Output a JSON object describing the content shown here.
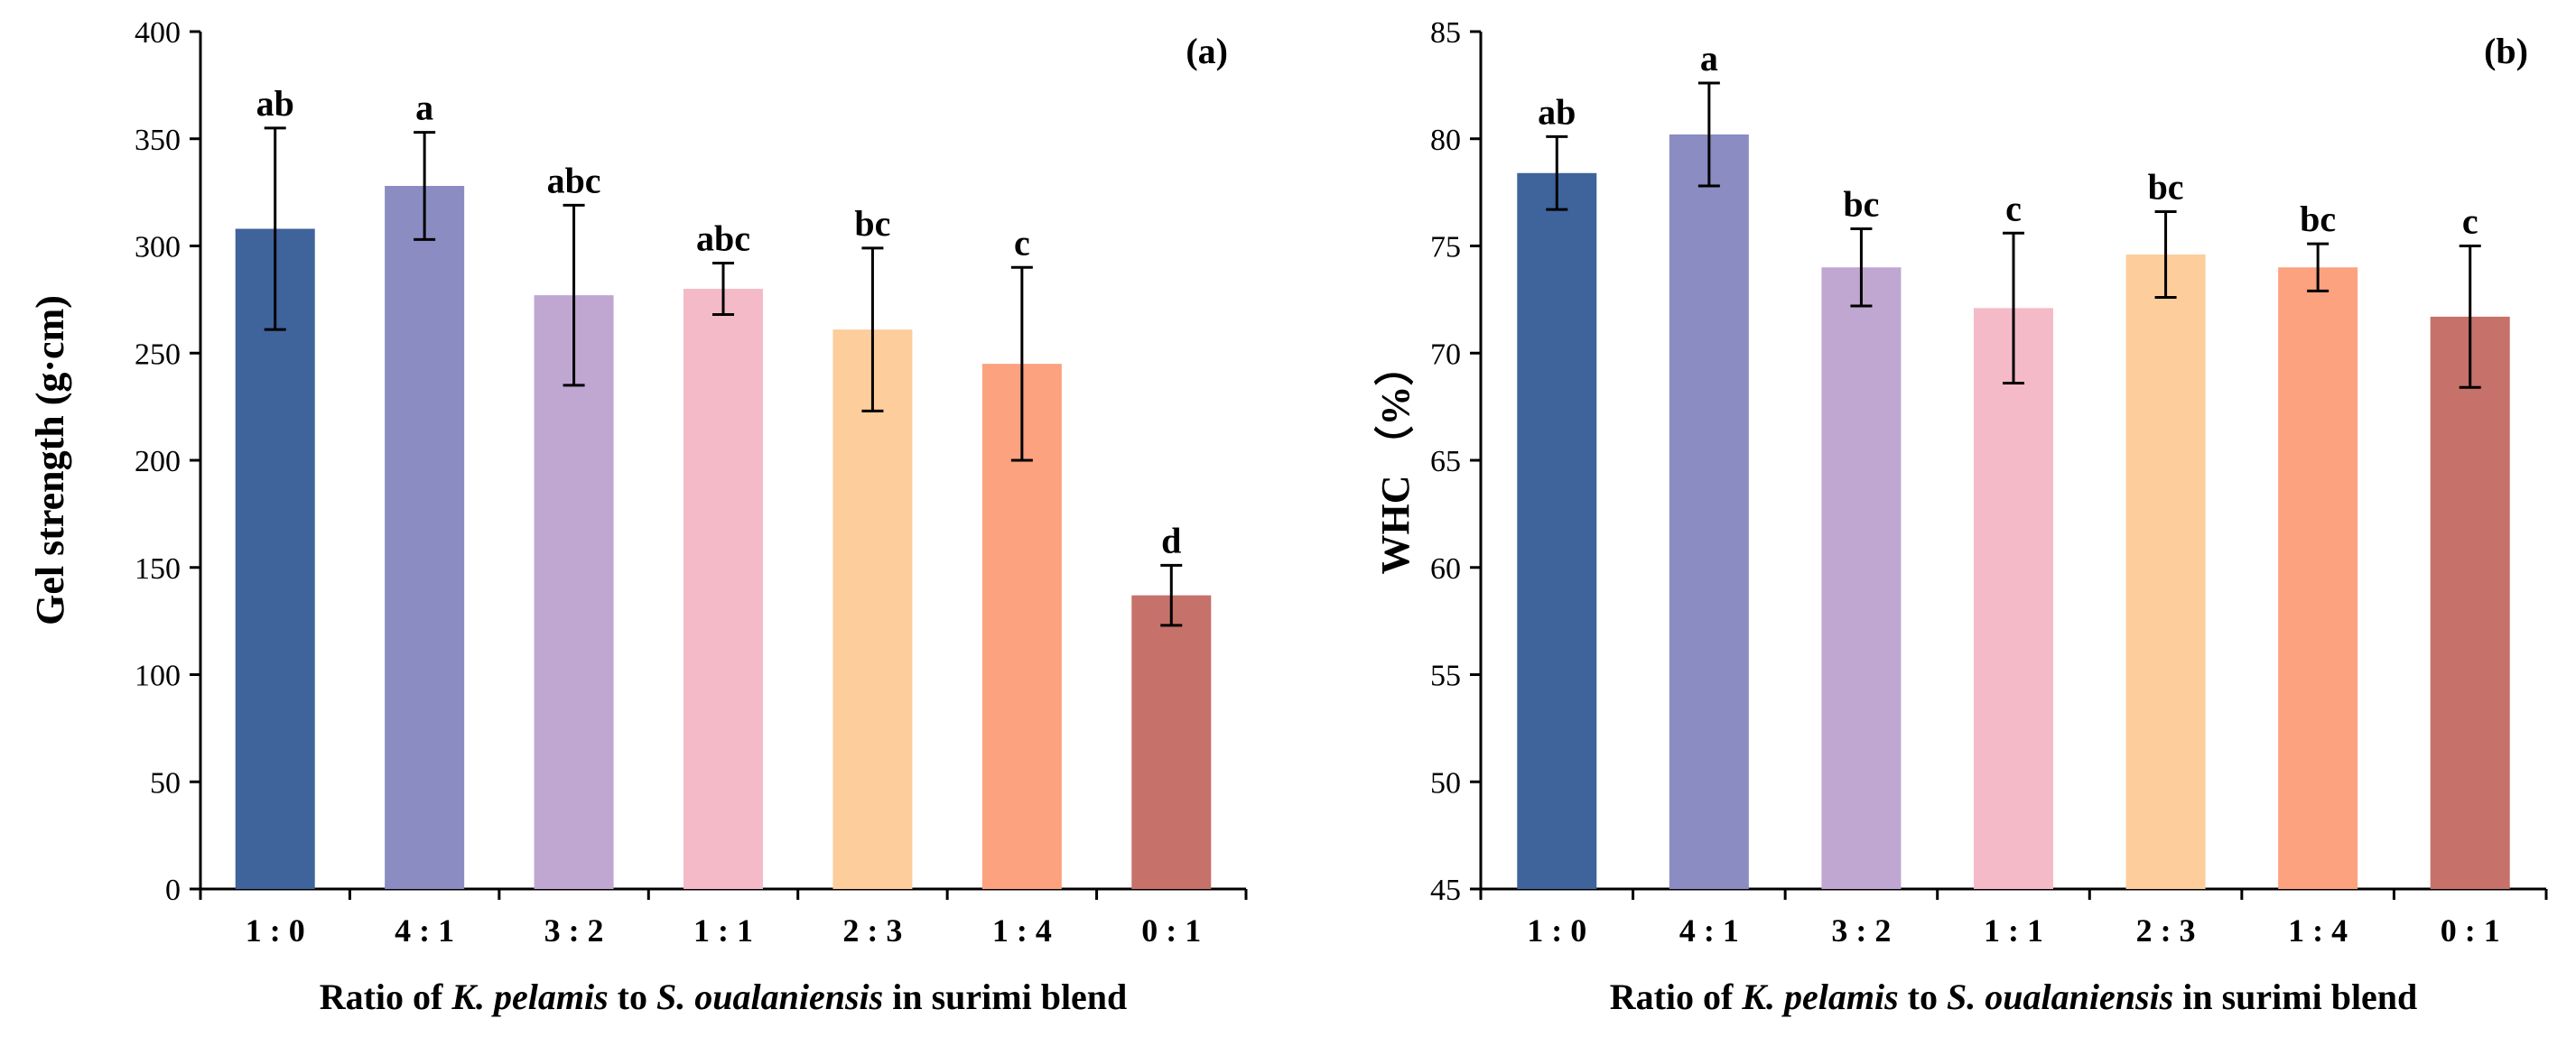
{
  "chart_data": [
    {
      "type": "bar",
      "panel_label": "(a)",
      "categories": [
        "1 : 0",
        "4 : 1",
        "3 : 2",
        "1 : 1",
        "2 : 3",
        "1 : 4",
        "0 : 1"
      ],
      "values": [
        308,
        328,
        277,
        280,
        261,
        245,
        137
      ],
      "errors": [
        47,
        25,
        42,
        12,
        38,
        45,
        14
      ],
      "significance": [
        "ab",
        "a",
        "abc",
        "abc",
        "bc",
        "c",
        "d"
      ],
      "ylabel": "Gel strength (g·cm)",
      "xlabel_parts": [
        "Ratio of ",
        "K. pelamis",
        " to ",
        "S. oualaniensis",
        " in surimi blend"
      ],
      "ylim": [
        0,
        400
      ],
      "yticks": [
        0,
        50,
        100,
        150,
        200,
        250,
        300,
        350,
        400
      ],
      "colors": [
        "#3f639b",
        "#8a8cc2",
        "#bfa7d1",
        "#f4bac8",
        "#fdcd9c",
        "#fca27e",
        "#c6716a"
      ]
    },
    {
      "type": "bar",
      "panel_label": "(b)",
      "categories": [
        "1 : 0",
        "4 : 1",
        "3 : 2",
        "1 : 1",
        "2 : 3",
        "1 : 4",
        "0 : 1"
      ],
      "values": [
        78.4,
        80.2,
        74.0,
        72.1,
        74.6,
        74.0,
        71.7
      ],
      "errors": [
        1.7,
        2.4,
        1.8,
        3.5,
        2.0,
        1.1,
        3.3
      ],
      "significance": [
        "ab",
        "a",
        "bc",
        "c",
        "bc",
        "bc",
        "c"
      ],
      "ylabel": "WHC （%）",
      "xlabel_parts": [
        "Ratio of ",
        "K. pelamis",
        " to ",
        "S. oualaniensis",
        " in surimi blend"
      ],
      "ylim": [
        45,
        85
      ],
      "yticks": [
        45,
        50,
        55,
        60,
        65,
        70,
        75,
        80,
        85
      ],
      "colors": [
        "#3f639b",
        "#8a8cc2",
        "#bfa7d1",
        "#f4bac8",
        "#fdcd9c",
        "#fca27e",
        "#c6716a"
      ]
    }
  ]
}
